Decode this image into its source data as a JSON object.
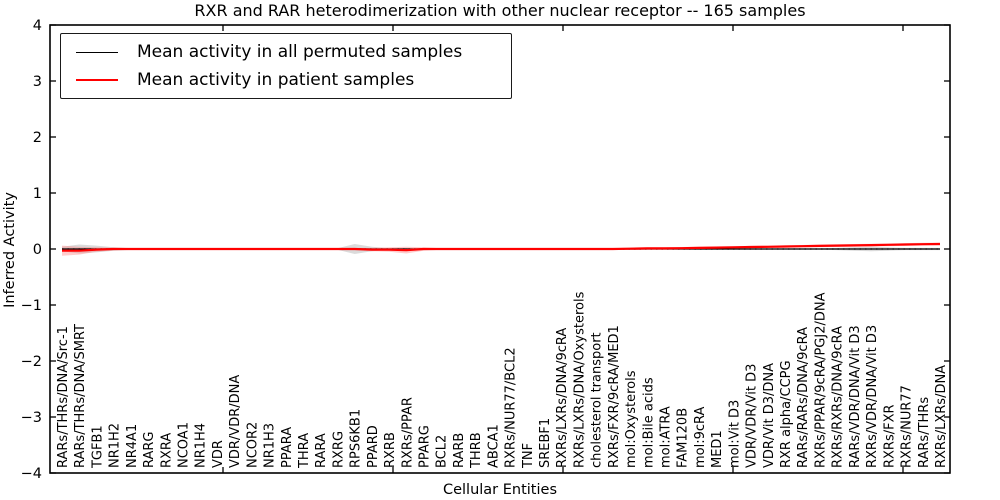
{
  "figure": {
    "title": "RXR and RAR heterodimerization with other nuclear receptor -- 165 samples",
    "xlabel": "Cellular Entities",
    "ylabel": "Inferred Activity"
  },
  "legend": {
    "items": [
      {
        "label": "Mean activity in all permuted samples",
        "color": "#000000"
      },
      {
        "label": "Mean activity in patient samples",
        "color": "#ff0000"
      }
    ]
  },
  "chart_data": {
    "type": "line",
    "title": "RXR and RAR heterodimerization with other nuclear receptor -- 165 samples",
    "xlabel": "Cellular Entities",
    "ylabel": "Inferred Activity",
    "ylim": [
      -4,
      4
    ],
    "yticks": [
      4,
      3,
      2,
      1,
      0,
      -1,
      -2,
      -3,
      -4
    ],
    "ytick_labels": [
      "4",
      "3",
      "2",
      "1",
      "0",
      "−1",
      "−2",
      "−3",
      "−4"
    ],
    "grid": false,
    "legend_position": "upper left",
    "zero_line": {
      "value": 0,
      "style": "dotted",
      "color": "#000000"
    },
    "categories": [
      "RARs/THRs/DNA/Src-1",
      "RARs/THRs/DNA/SMRT",
      "TGFB1",
      "NR1H2",
      "NR4A1",
      "RARG",
      "RXRA",
      "NCOA1",
      "NR1H4",
      "VDR",
      "VDR/VDR/DNA",
      "NCOR2",
      "NR1H3",
      "PPARA",
      "THRA",
      "RARA",
      "RXRG",
      "RPS6KB1",
      "PPARD",
      "RXRB",
      "RXRs/PPAR",
      "PPARG",
      "BCL2",
      "RARB",
      "THRB",
      "ABCA1",
      "RXRs/NUR77/BCL2",
      "TNF",
      "SREBF1",
      "RXRs/LXRs/DNA/9cRA",
      "RXRs/LXRs/DNA/Oxysterols",
      "cholesterol transport",
      "RXRs/FXR/9cRA/MED1",
      "mol:Oxysterols",
      "mol:Bile acids",
      "mol:ATRA",
      "FAM120B",
      "mol:9cRA",
      "MED1",
      "mol:Vit D3",
      "VDR/VDR/Vit D3",
      "VDR/Vit D3/DNA",
      "RXR alpha/CCPG",
      "RARs/RARs/DNA/9cRA",
      "RXRs/PPAR/9cRA/PGJ2/DNA",
      "RXRs/RXRs/DNA/9cRA",
      "RARs/VDR/DNA/Vit D3",
      "RXRs/VDR/DNA/Vit D3",
      "RXRs/FXR",
      "RXRs/NUR77",
      "RARs/THRs",
      "RXRs/LXRs/DNA"
    ],
    "series": [
      {
        "name": "Mean activity in all permuted samples",
        "color": "#000000",
        "band_color": "#c8c8c8",
        "values": [
          0,
          0,
          0,
          0,
          0,
          0,
          0,
          0,
          0,
          0,
          0,
          0,
          0,
          0,
          0,
          0,
          0,
          0,
          0,
          0,
          0,
          0,
          0,
          0,
          0,
          0,
          0,
          0,
          0,
          0,
          0,
          0,
          0,
          0,
          0,
          0,
          0,
          0,
          0,
          0,
          0,
          0,
          0,
          0,
          0,
          0,
          0,
          0,
          0,
          0,
          0,
          0
        ],
        "band": [
          0.04,
          0.08,
          0.06,
          0.03,
          0.015,
          0.015,
          0.015,
          0.015,
          0.015,
          0.015,
          0.015,
          0.015,
          0.015,
          0.015,
          0.015,
          0.015,
          0.015,
          0.09,
          0.04,
          0.015,
          0.015,
          0.015,
          0.015,
          0.015,
          0.015,
          0.015,
          0.015,
          0.015,
          0.015,
          0.015,
          0.015,
          0.015,
          0.015,
          0.015,
          0.015,
          0.015,
          0.015,
          0.015,
          0.015,
          0.015,
          0.015,
          0.015,
          0.015,
          0.015,
          0.015,
          0.02,
          0.03,
          0.04,
          0.03,
          0.02,
          0.02,
          0.02
        ]
      },
      {
        "name": "Mean activity in patient samples",
        "color": "#ff0000",
        "band_color": "#ff8080",
        "values": [
          -0.03,
          -0.03,
          -0.01,
          0,
          0,
          0,
          0,
          0,
          0,
          0,
          0,
          0,
          0,
          0,
          0,
          0,
          0,
          0,
          -0.01,
          -0.01,
          -0.02,
          0,
          0,
          0,
          0,
          0,
          0,
          0,
          0,
          0,
          0,
          0,
          0,
          0.005,
          0.01,
          0.01,
          0.015,
          0.02,
          0.025,
          0.03,
          0.035,
          0.04,
          0.045,
          0.05,
          0.055,
          0.06,
          0.065,
          0.07,
          0.075,
          0.08,
          0.085,
          0.09
        ],
        "band": [
          0.09,
          0.07,
          0.04,
          0.025,
          0.015,
          0.015,
          0.015,
          0.015,
          0.015,
          0.015,
          0.015,
          0.015,
          0.015,
          0.015,
          0.015,
          0.015,
          0.015,
          0.02,
          0.03,
          0.04,
          0.06,
          0.03,
          0.015,
          0.015,
          0.015,
          0.015,
          0.015,
          0.015,
          0.015,
          0.015,
          0.015,
          0.015,
          0.015,
          0.02,
          0.02,
          0.02,
          0.02,
          0.02,
          0.02,
          0.02,
          0.02,
          0.02,
          0.02,
          0.022,
          0.025,
          0.025,
          0.025,
          0.025,
          0.025,
          0.025,
          0.025,
          0.025
        ]
      }
    ]
  }
}
